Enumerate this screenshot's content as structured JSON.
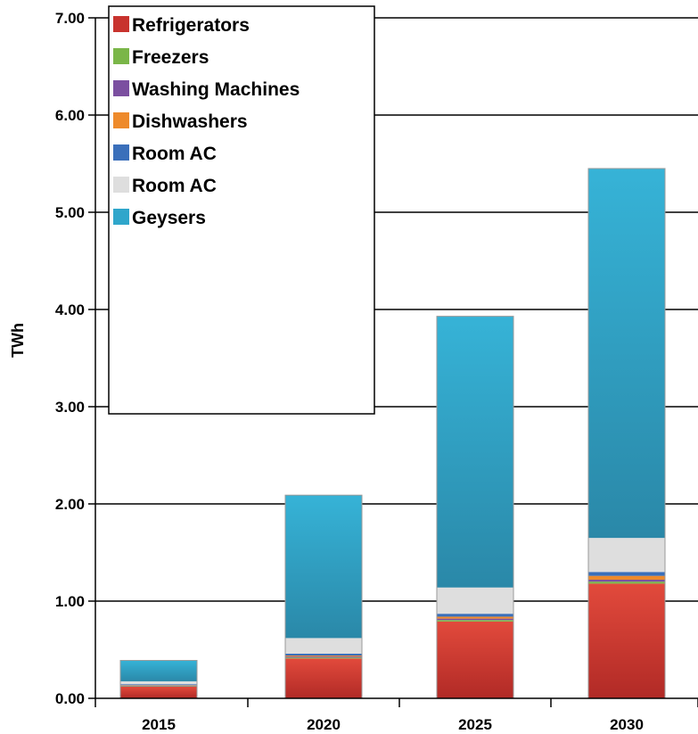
{
  "chart_data": {
    "type": "bar",
    "stacked": true,
    "categories": [
      "2015",
      "2020",
      "2025",
      "2030"
    ],
    "ylabel": "TWh",
    "xlabel": "",
    "ylim": [
      0,
      7
    ],
    "yticks": [
      "0.00",
      "1.00",
      "2.00",
      "3.00",
      "4.00",
      "5.00",
      "6.00",
      "7.00"
    ],
    "grid": "horizontal",
    "legend_position": "top-left",
    "series": [
      {
        "name": "Refrigerators",
        "color": "#c8332e",
        "values": [
          0.12,
          0.41,
          0.79,
          1.18
        ]
      },
      {
        "name": "Freezers",
        "color": "#7ab648",
        "values": [
          0.005,
          0.01,
          0.015,
          0.02
        ]
      },
      {
        "name": "Washing Machines",
        "color": "#7b4fa0",
        "values": [
          0.005,
          0.01,
          0.015,
          0.02
        ]
      },
      {
        "name": "Dishwashers",
        "color": "#ee8a2b",
        "values": [
          0.005,
          0.01,
          0.02,
          0.04
        ]
      },
      {
        "name": "Room AC",
        "color": "#3a6fba",
        "values": [
          0.01,
          0.02,
          0.03,
          0.04
        ]
      },
      {
        "name": "Room AC",
        "color": "#dedede",
        "values": [
          0.03,
          0.16,
          0.27,
          0.35
        ]
      },
      {
        "name": "Geysers",
        "color": "#2fa6cb",
        "values": [
          0.215,
          1.47,
          2.79,
          3.8
        ]
      }
    ]
  }
}
